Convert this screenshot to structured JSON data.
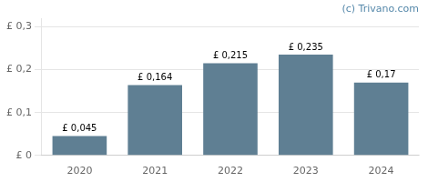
{
  "chart_data": {
    "type": "bar",
    "categories": [
      "2020",
      "2021",
      "2022",
      "2023",
      "2024"
    ],
    "values": [
      0.045,
      0.164,
      0.215,
      0.235,
      0.17
    ],
    "value_labels": [
      "£ 0,045",
      "£ 0,164",
      "£ 0,215",
      "£ 0,235",
      "£ 0,17"
    ],
    "data_labels": true,
    "color": "#5f7f93",
    "ylim": [
      0,
      0.32
    ],
    "yticks": [
      {
        "value": 0,
        "label": "£ 0"
      },
      {
        "value": 0.1,
        "label": "£ 0,1"
      },
      {
        "value": 0.2,
        "label": "£ 0,2"
      },
      {
        "value": 0.3,
        "label": "£ 0,3"
      }
    ],
    "grid": true,
    "annotations": [
      {
        "text": "(c) Trivano.com",
        "color": "#5588aa"
      }
    ]
  }
}
